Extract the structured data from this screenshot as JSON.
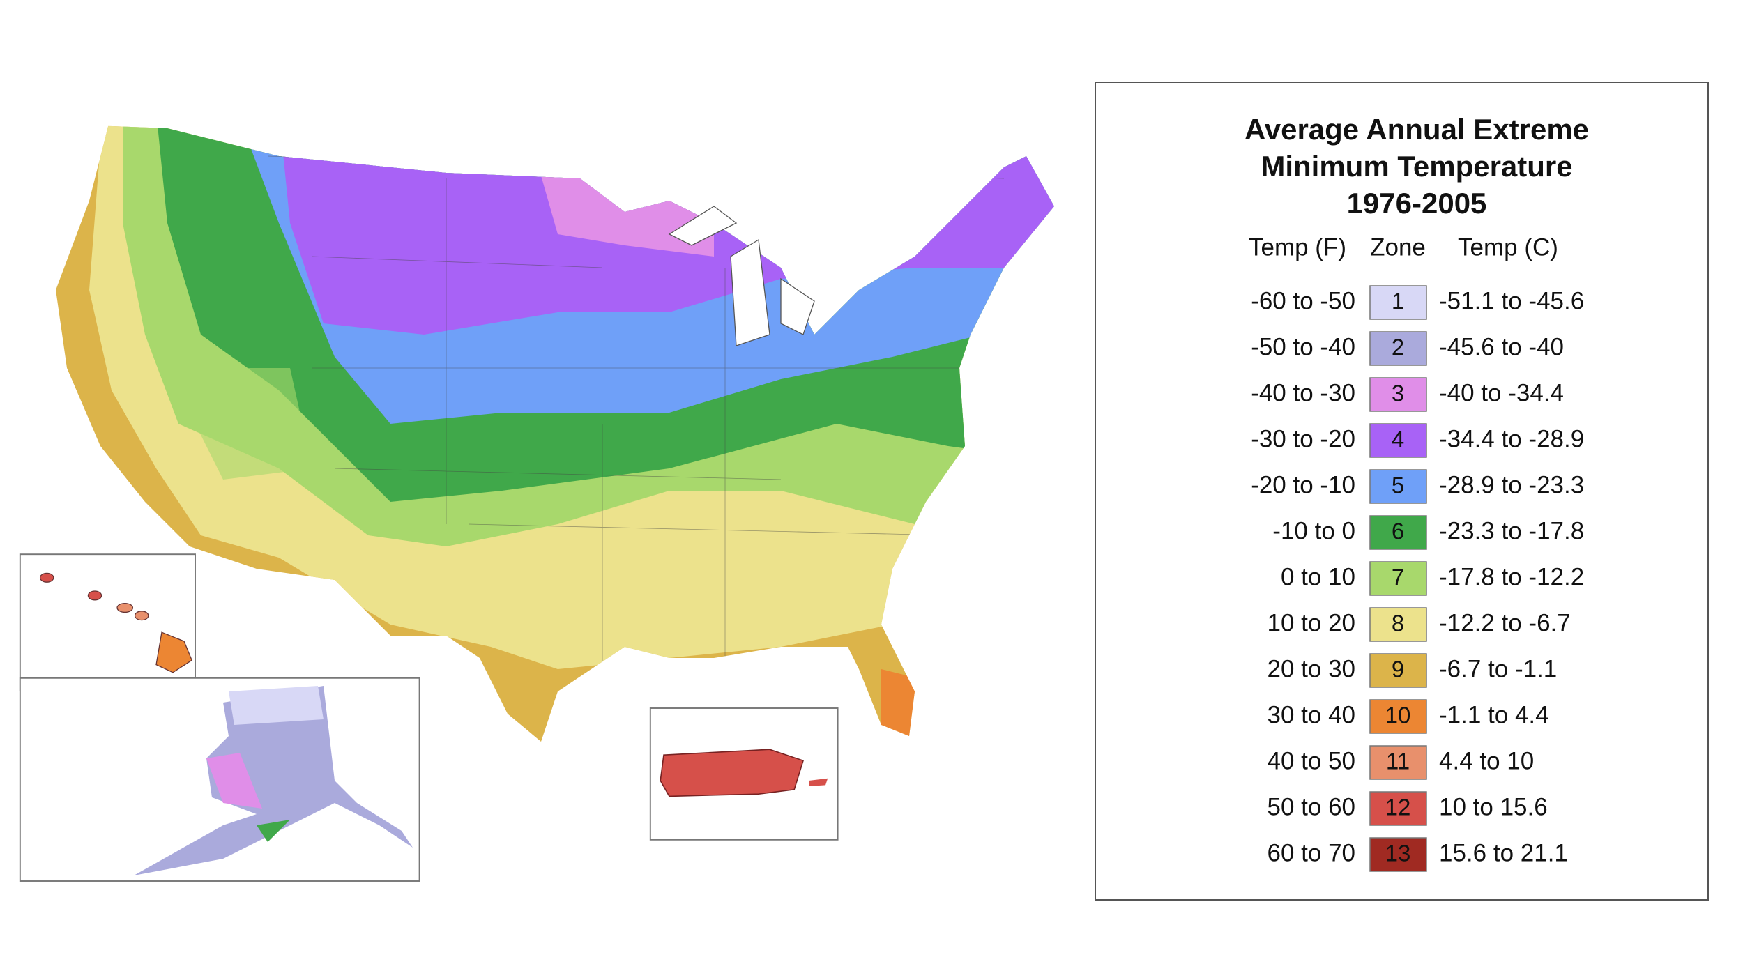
{
  "legend": {
    "title_lines": [
      "Average Annual Extreme",
      "Minimum Temperature",
      "1976-2005"
    ],
    "headers": [
      "Temp (F)",
      "Zone",
      "Temp (C)"
    ],
    "rows": [
      {
        "temp_f": "-60 to -50",
        "zone": 1,
        "temp_c": "-51.1 to -45.6",
        "color": "#d8d8f6"
      },
      {
        "temp_f": "-50 to -40",
        "zone": 2,
        "temp_c": "-45.6 to -40",
        "color": "#aaaadc"
      },
      {
        "temp_f": "-40 to -30",
        "zone": 3,
        "temp_c": "-40 to -34.4",
        "color": "#e08ee8"
      },
      {
        "temp_f": "-30 to -20",
        "zone": 4,
        "temp_c": "-34.4 to -28.9",
        "color": "#a862f6"
      },
      {
        "temp_f": "-20 to -10",
        "zone": 5,
        "temp_c": "-28.9 to -23.3",
        "color": "#6fa0f8"
      },
      {
        "temp_f": "-10 to 0",
        "zone": 6,
        "temp_c": "-23.3 to -17.8",
        "color": "#40a84a"
      },
      {
        "temp_f": "0 to 10",
        "zone": 7,
        "temp_c": "-17.8 to -12.2",
        "color": "#a8d86c"
      },
      {
        "temp_f": "10 to 20",
        "zone": 8,
        "temp_c": "-12.2 to -6.7",
        "color": "#ece28c"
      },
      {
        "temp_f": "20 to 30",
        "zone": 9,
        "temp_c": "-6.7 to -1.1",
        "color": "#dcb44a"
      },
      {
        "temp_f": "30 to 40",
        "zone": 10,
        "temp_c": "-1.1 to 4.4",
        "color": "#ec8633"
      },
      {
        "temp_f": "40 to 50",
        "zone": 11,
        "temp_c": "4.4 to 10",
        "color": "#e8906c"
      },
      {
        "temp_f": "50 to 60",
        "zone": 12,
        "temp_c": "10 to 15.6",
        "color": "#d6504a"
      },
      {
        "temp_f": "60 to 70",
        "zone": 13,
        "temp_c": "15.6 to 21.1",
        "color": "#a02a22"
      }
    ]
  }
}
